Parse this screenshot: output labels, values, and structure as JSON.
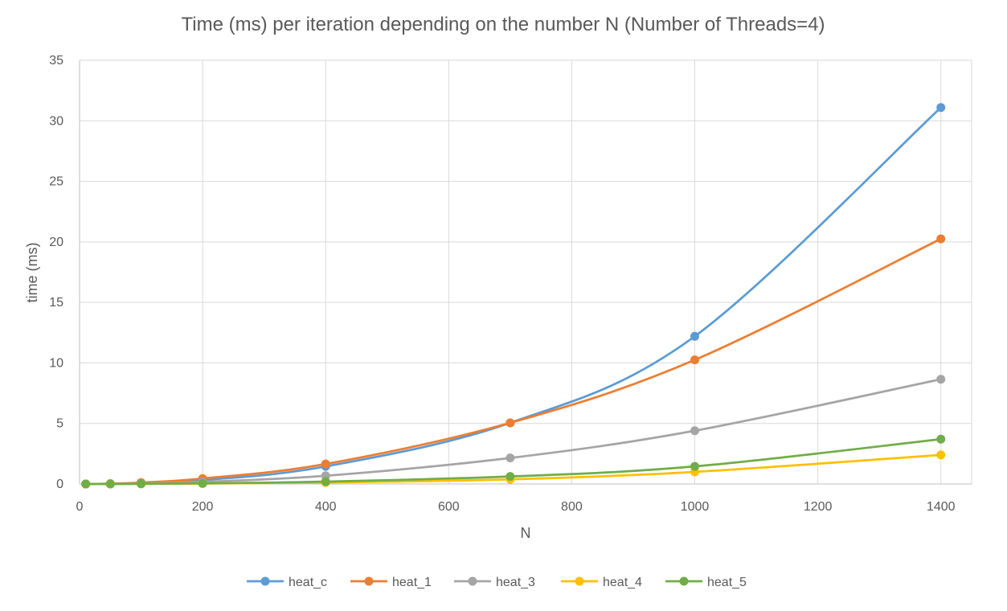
{
  "chart_data": {
    "type": "line",
    "title": "Time (ms) per iteration depending on the number N (Number of Threads=4)",
    "xlabel": "N",
    "ylabel": "time (ms)",
    "xlim": [
      0,
      1450
    ],
    "ylim": [
      0,
      35
    ],
    "x_ticks": [
      0,
      200,
      400,
      600,
      800,
      1000,
      1200,
      1400
    ],
    "y_ticks": [
      0,
      5,
      10,
      15,
      20,
      25,
      30,
      35
    ],
    "grid": true,
    "legend_position": "bottom",
    "x": [
      10,
      50,
      100,
      200,
      400,
      700,
      1000,
      1400
    ],
    "series": [
      {
        "name": "heat_c",
        "color": "#5b9bd5",
        "values": [
          0.0,
          0.02,
          0.08,
          0.32,
          1.45,
          5.05,
          12.2,
          31.1
        ]
      },
      {
        "name": "heat_1",
        "color": "#ed7d31",
        "values": [
          0.0,
          0.03,
          0.12,
          0.45,
          1.65,
          5.05,
          10.25,
          20.25
        ]
      },
      {
        "name": "heat_3",
        "color": "#a5a5a5",
        "values": [
          0.0,
          0.01,
          0.04,
          0.17,
          0.68,
          2.15,
          4.4,
          8.65
        ]
      },
      {
        "name": "heat_4",
        "color": "#ffc000",
        "values": [
          0.0,
          0.0,
          0.01,
          0.03,
          0.12,
          0.38,
          1.0,
          2.4
        ]
      },
      {
        "name": "heat_5",
        "color": "#70ad47",
        "values": [
          0.0,
          0.0,
          0.02,
          0.05,
          0.2,
          0.62,
          1.45,
          3.7
        ]
      }
    ]
  }
}
